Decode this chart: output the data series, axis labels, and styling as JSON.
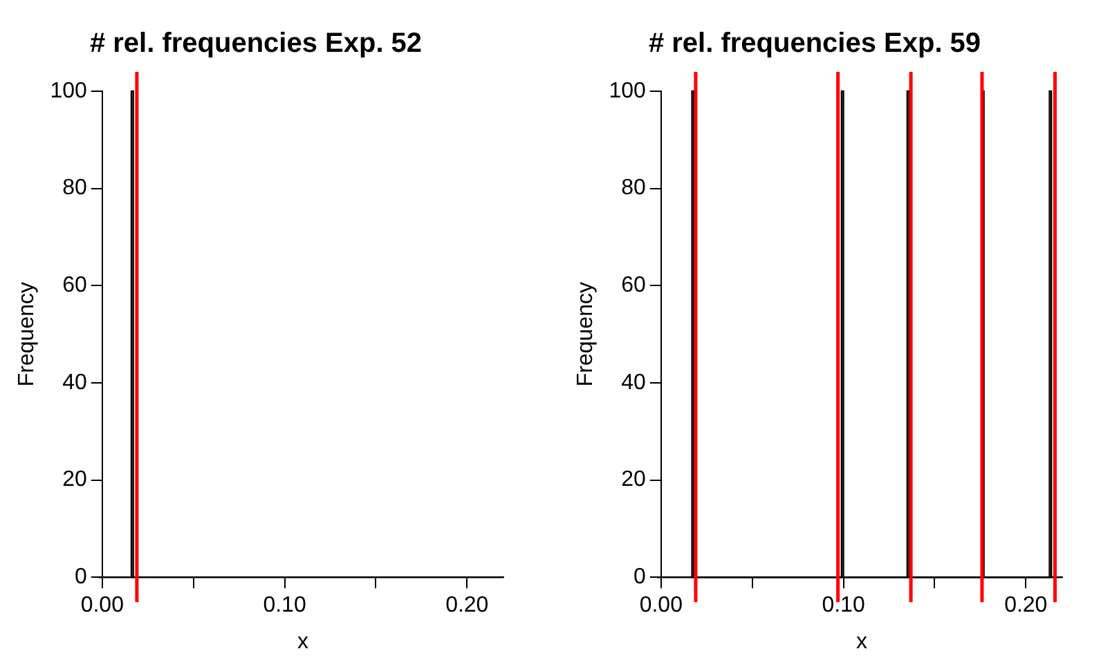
{
  "chart_data": [
    {
      "type": "histogram",
      "title": "# rel. frequencies Exp. 52",
      "xlabel": "x",
      "ylabel": "Frequency",
      "bins": [
        0.016,
        0.017
      ],
      "values": [
        100
      ],
      "color": "#000000",
      "xlim": [
        0,
        0.22
      ],
      "xticks": [
        {
          "value": 0,
          "label": "0.00"
        },
        {
          "value": 0.05,
          "label": null
        },
        {
          "value": 0.1,
          "label": "0.10"
        },
        {
          "value": 0.15,
          "label": null
        },
        {
          "value": 0.2,
          "label": "0.20"
        }
      ],
      "ylim": [
        0,
        100
      ],
      "yticks": [
        0,
        20,
        40,
        60,
        80,
        100
      ],
      "grid": false,
      "legend": false,
      "ref_lines": [
        {
          "axis": "x",
          "value": 0.019,
          "color": "#ff0000"
        }
      ]
    },
    {
      "type": "histogram",
      "title": "# rel. frequencies Exp. 59",
      "xlabel": "x",
      "ylabel": "Frequency",
      "bins": [
        0.017,
        0.018,
        0.099,
        0.1,
        0.135,
        0.136,
        0.176,
        0.177,
        0.213,
        0.214
      ],
      "values": [
        100,
        0,
        100,
        0,
        100,
        0,
        100,
        0,
        100
      ],
      "color": "#000000",
      "xlim": [
        0,
        0.22
      ],
      "xticks": [
        {
          "value": 0,
          "label": "0.00"
        },
        {
          "value": 0.05,
          "label": null
        },
        {
          "value": 0.1,
          "label": "0.10"
        },
        {
          "value": 0.15,
          "label": null
        },
        {
          "value": 0.2,
          "label": "0.20"
        }
      ],
      "ylim": [
        0,
        100
      ],
      "yticks": [
        0,
        20,
        40,
        60,
        80,
        100
      ],
      "grid": false,
      "legend": false,
      "ref_lines": [
        {
          "axis": "x",
          "value": 0.019,
          "color": "#ff0000"
        },
        {
          "axis": "x",
          "value": 0.097,
          "color": "#ff0000"
        },
        {
          "axis": "x",
          "value": 0.137,
          "color": "#ff0000"
        },
        {
          "axis": "x",
          "value": 0.176,
          "color": "#ff0000"
        },
        {
          "axis": "x",
          "value": 0.216,
          "color": "#ff0000"
        }
      ]
    }
  ]
}
